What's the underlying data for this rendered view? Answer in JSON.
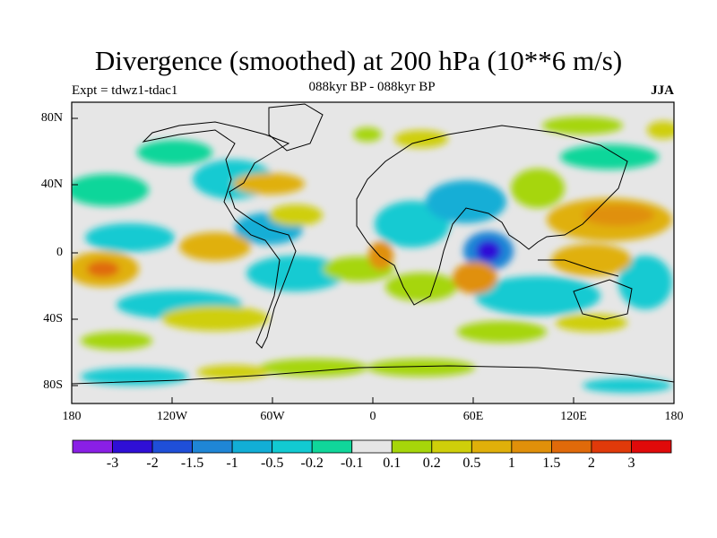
{
  "title": "Divergence (smoothed) at 200 hPa (10**6 m/s)",
  "subtitle": "088kyr BP - 088kyr BP",
  "expt_label": "Expt = tdwz1-tdac1",
  "season": "JJA",
  "lat_labels": [
    "80N",
    "40N",
    "0",
    "40S",
    "80S"
  ],
  "lon_labels": [
    "180",
    "120W",
    "60W",
    "0",
    "60E",
    "120E",
    "180"
  ],
  "colorbar": {
    "colors": [
      "#8a1fe6",
      "#2f0fd6",
      "#1f4fd8",
      "#1f86d6",
      "#12aed6",
      "#12cad2",
      "#10d69a",
      "#e6e6e6",
      "#a6d60a",
      "#cfcf0a",
      "#e0b00a",
      "#e0900a",
      "#e06a0a",
      "#e03a0a",
      "#e00a0a"
    ],
    "labels": [
      "-3",
      "-2",
      "-1.5",
      "-1",
      "-0.5",
      "-0.2",
      "-0.1",
      "0.1",
      "0.2",
      "0.5",
      "1",
      "1.5",
      "2",
      "3"
    ]
  }
}
